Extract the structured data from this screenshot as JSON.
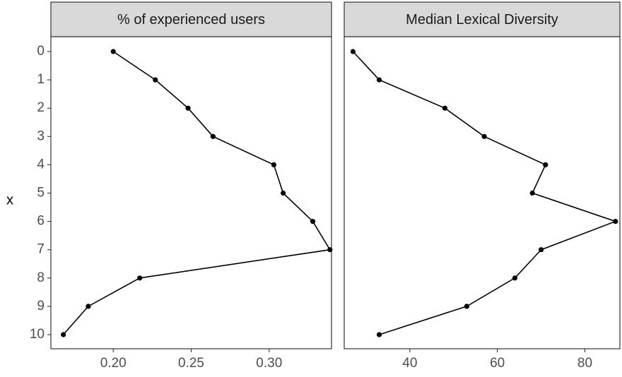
{
  "chart_data": {
    "type": "line",
    "orientation": "horizontal-values",
    "y_axis": {
      "title": "x",
      "categories": [
        0,
        1,
        2,
        3,
        4,
        5,
        6,
        7,
        8,
        9,
        10
      ],
      "tick_labels": [
        "0",
        "1",
        "2",
        "3",
        "4",
        "5",
        "6",
        "7",
        "8",
        "9",
        "10"
      ]
    },
    "grid": false,
    "panels": [
      {
        "title": "% of experienced users",
        "xlim": [
          0.16,
          0.34
        ],
        "x_ticks": [
          0.2,
          0.25,
          0.3
        ],
        "x_tick_labels": [
          "0.20",
          "0.25",
          "0.30"
        ],
        "values": [
          0.2,
          0.227,
          0.248,
          0.264,
          0.303,
          0.309,
          0.328,
          0.339,
          0.217,
          0.184,
          0.168
        ]
      },
      {
        "title": "Median Lexical Diversity",
        "xlim": [
          25,
          88
        ],
        "x_ticks": [
          40,
          60,
          80
        ],
        "x_tick_labels": [
          "40",
          "60",
          "80"
        ],
        "values": [
          27,
          33,
          48,
          57,
          71,
          68,
          87,
          70,
          64,
          53,
          33
        ]
      }
    ]
  }
}
